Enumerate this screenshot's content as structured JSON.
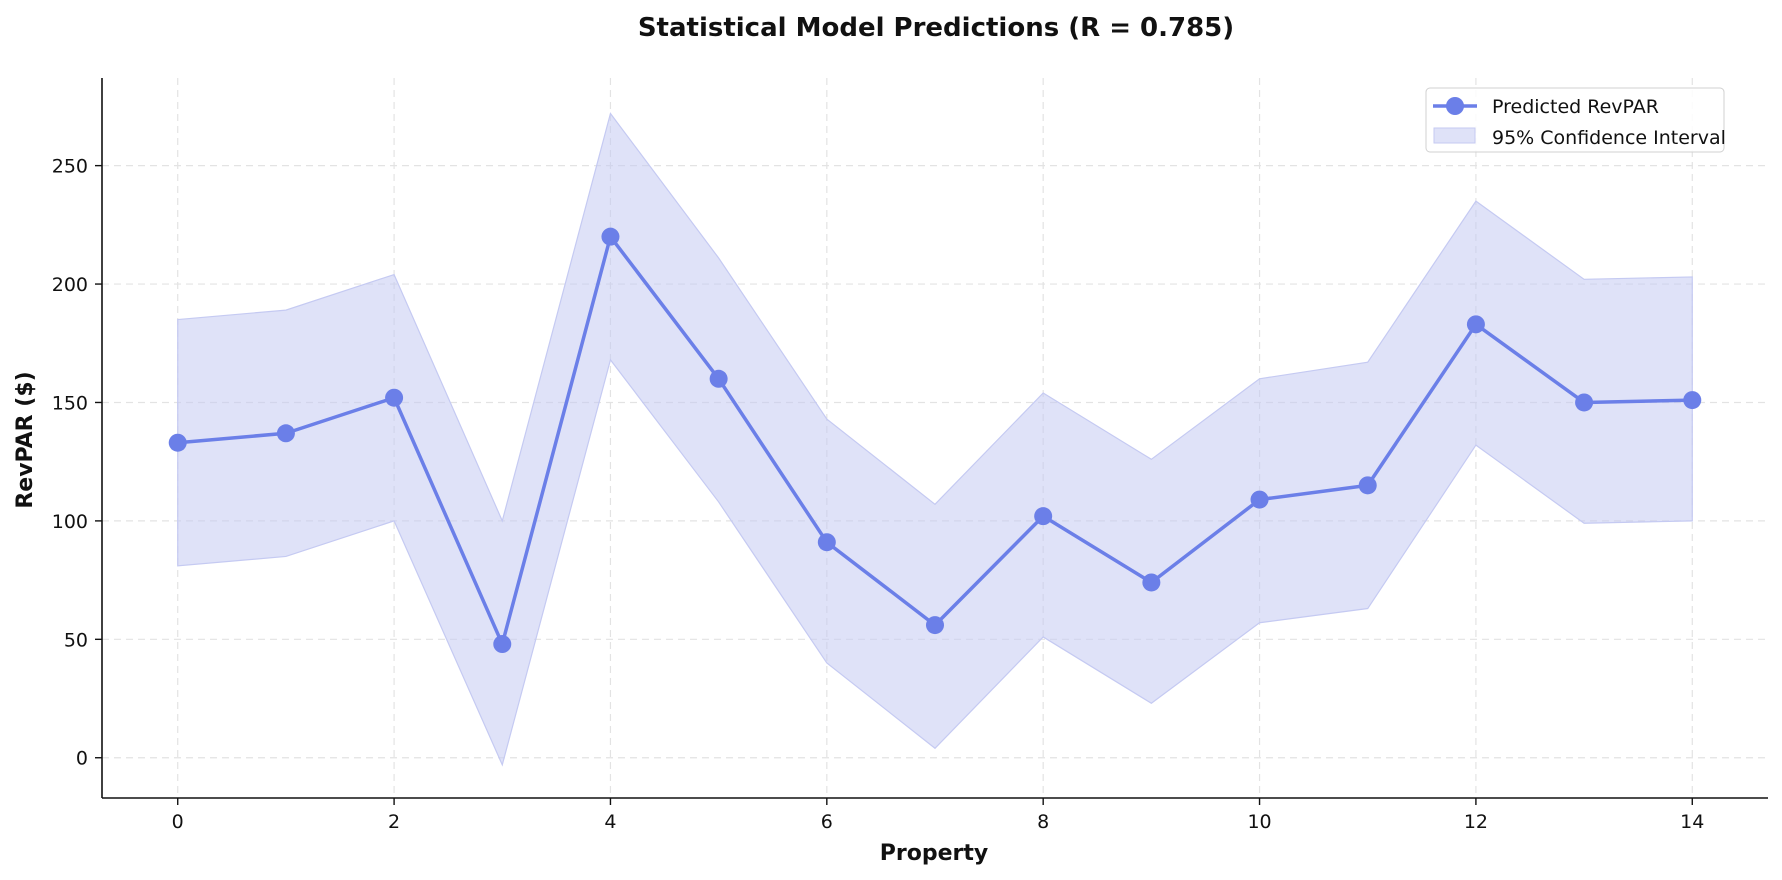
{
  "chart_data": {
    "type": "line",
    "title": "Statistical Model Predictions (R = 0.785)",
    "xlabel": "Property",
    "ylabel": "RevPAR ($)",
    "xlim": [
      -0.7,
      14.7
    ],
    "ylim": [
      -17,
      287
    ],
    "x_ticks": [
      0,
      2,
      4,
      6,
      8,
      10,
      12,
      14
    ],
    "y_ticks": [
      0,
      50,
      100,
      150,
      200,
      250
    ],
    "grid": true,
    "legend_position": "top-right",
    "x": [
      0,
      1,
      2,
      3,
      4,
      5,
      6,
      7,
      8,
      9,
      10,
      11,
      12,
      13,
      14
    ],
    "series": [
      {
        "name": "Predicted RevPAR",
        "color": "#6b7fe8",
        "values": [
          133,
          137,
          152,
          48,
          220,
          160,
          91,
          56,
          102,
          74,
          109,
          115,
          183,
          150,
          151
        ]
      }
    ],
    "confidence_interval": {
      "name": "95% Confidence Interval",
      "color": "#c5caf2",
      "lower": [
        81,
        85,
        100,
        -3,
        168,
        108,
        40,
        4,
        51,
        23,
        57,
        63,
        132,
        99,
        100
      ],
      "upper": [
        185,
        189,
        204,
        100,
        272,
        211,
        143,
        107,
        154,
        126,
        160,
        167,
        235,
        202,
        203
      ]
    }
  }
}
